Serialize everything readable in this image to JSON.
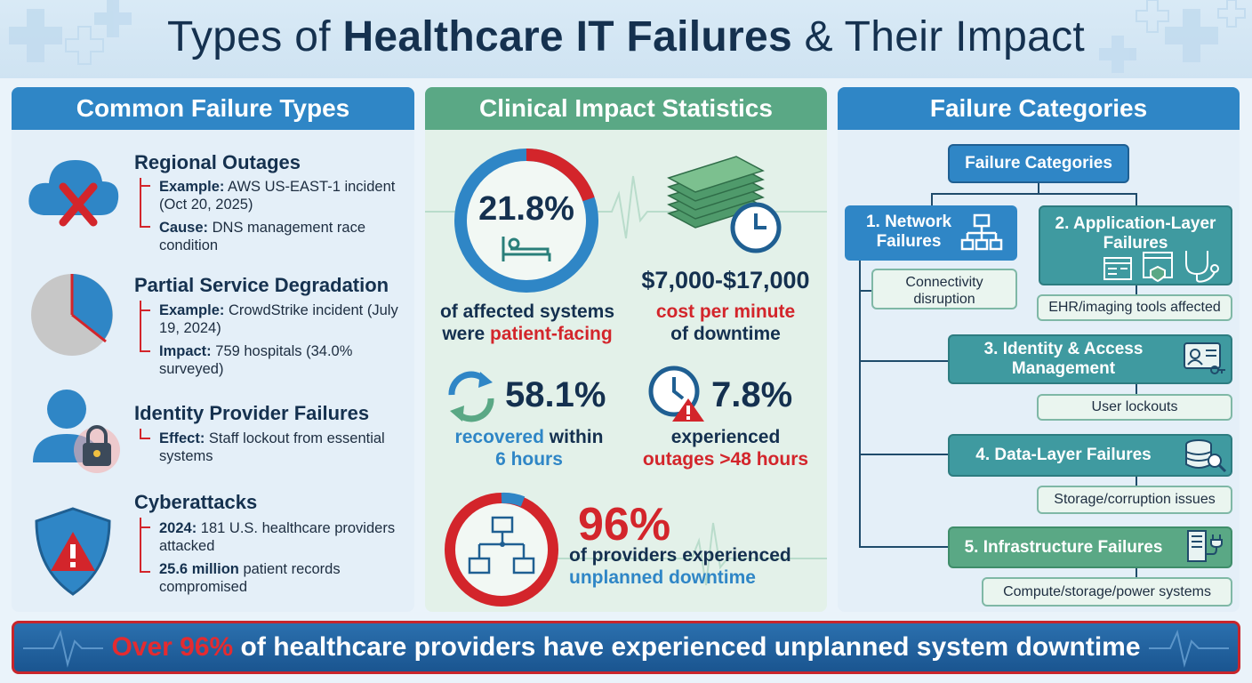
{
  "title": {
    "pre": "Types of ",
    "bold": "Healthcare IT Failures",
    "post": " & Their Impact"
  },
  "panels": {
    "failure_types": {
      "heading": "Common Failure Types",
      "items": [
        {
          "title": "Regional Outages",
          "icon": "cloud-x-icon",
          "lines": [
            {
              "label": "Example:",
              "text": " AWS US-EAST-1 incident (Oct 20, 2025)"
            },
            {
              "label": "Cause:",
              "text": " DNS management race condition"
            }
          ]
        },
        {
          "title": "Partial Service Degradation",
          "icon": "pie-chart-icon",
          "lines": [
            {
              "label": "Example:",
              "text": " CrowdStrike incident (July 19, 2024)"
            },
            {
              "label": "Impact:",
              "text": " 759 hospitals (34.0% surveyed)"
            }
          ]
        },
        {
          "title": "Identity Provider Failures",
          "icon": "user-lock-icon",
          "lines": [
            {
              "label": "Effect:",
              "text": " Staff lockout from essential systems"
            }
          ]
        },
        {
          "title": "Cyberattacks",
          "icon": "shield-alert-icon",
          "lines": [
            {
              "label": "2024:",
              "text": " 181 U.S. healthcare providers attacked"
            },
            {
              "label": "25.6 million",
              "text": " patient records compromised"
            }
          ]
        }
      ]
    },
    "clinical": {
      "heading": "Clinical Impact Statistics",
      "stat1": {
        "value": "21.8%",
        "line1": "of affected systems",
        "line2a": "were ",
        "line2b": "patient-facing"
      },
      "stat2": {
        "value": "$7,000-$17,000",
        "line1": "cost per minute",
        "line2": "of downtime"
      },
      "stat3": {
        "value": "58.1%",
        "line1a": "recovered",
        "line1b": " within",
        "line2": "6 hours"
      },
      "stat4": {
        "value": "7.8%",
        "line1": "experienced",
        "line2": "outages >48 hours"
      },
      "stat5": {
        "value": "96%",
        "line1": "of providers experienced",
        "line2": "unplanned downtime"
      }
    },
    "categories": {
      "heading": "Failure Categories",
      "root": "Failure Categories",
      "nodes": [
        {
          "label1": "1. Network",
          "label2": "Failures",
          "sub": "Connectivity disruption",
          "icon": "network-icon"
        },
        {
          "label1": "2. Application-Layer",
          "label2": "Failures",
          "sub": "EHR/imaging tools affected",
          "icon": "stethoscope-icon"
        },
        {
          "label1": "3. Identity & Access",
          "label2": "Management",
          "sub": "User lockouts",
          "icon": "id-card-icon"
        },
        {
          "label1": "4. Data-Layer Failures",
          "label2": "",
          "sub": "Storage/corruption issues",
          "icon": "database-icon"
        },
        {
          "label1": "5. Infrastructure Failures",
          "label2": "",
          "sub": "Compute/storage/power systems",
          "icon": "server-power-icon"
        }
      ]
    }
  },
  "banner": {
    "highlight": "Over 96%",
    "text": " of healthcare providers have experienced unplanned system downtime"
  },
  "colors": {
    "accent_blue": "#2f86c6",
    "accent_green": "#5aa885",
    "alert_red": "#d3252b",
    "navy": "#15314f"
  }
}
